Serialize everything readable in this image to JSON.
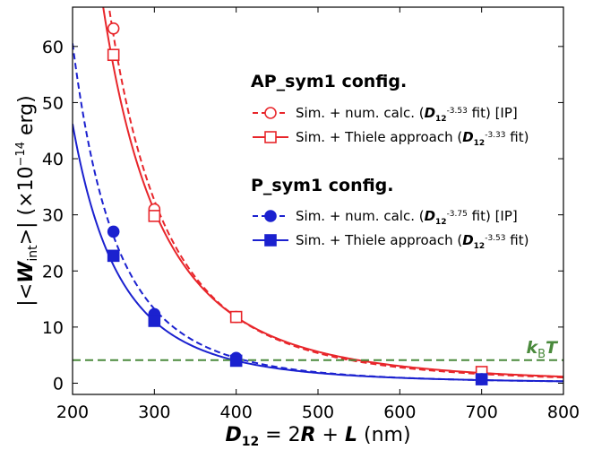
{
  "chart_data": {
    "type": "scatter",
    "xlim": [
      200,
      800
    ],
    "ylim": [
      -2,
      67
    ],
    "xticks": [
      200,
      300,
      400,
      500,
      600,
      700,
      800
    ],
    "yticks": [
      0,
      10,
      20,
      30,
      40,
      50,
      60
    ],
    "xlabel": "D₁₂ = 2R + L (nm)",
    "ylabel": "|<W_int>| (×10⁻¹⁴ erg)",
    "grid": false,
    "legend": {
      "position": "top-right",
      "groups": [
        {
          "title": "AP_sym1 config.",
          "entries": [
            {
              "label": "Sim. + num. calc. (D₁₂⁻³·⁵³ fit) [IP]",
              "marker": "circle-open",
              "line": "dashed",
              "color": "#e8262b"
            },
            {
              "label": "Sim. + Thiele approach (D₁₂⁻³·³³ fit)",
              "marker": "square-open",
              "line": "solid",
              "color": "#e8262b"
            }
          ]
        },
        {
          "title": "P_sym1 config.",
          "entries": [
            {
              "label": "Sim. + num. calc. (D₁₂⁻³·⁷⁵ fit) [IP]",
              "marker": "circle-filled",
              "line": "dashed",
              "color": "#1b21cf"
            },
            {
              "label": "Sim. + Thiele approach (D₁₂⁻³·⁵³ fit)",
              "marker": "square-filled",
              "line": "solid",
              "color": "#1b21cf"
            }
          ]
        }
      ]
    },
    "series": [
      {
        "id": "ap_num",
        "color": "#e8262b",
        "marker": "circle-open",
        "line": "dashed",
        "x": [
          250,
          300,
          400,
          700
        ],
        "y": [
          63.2,
          31.0,
          11.8,
          1.8
        ],
        "fit_exponent": -3.53
      },
      {
        "id": "ap_thiele",
        "color": "#e8262b",
        "marker": "square-open",
        "line": "solid",
        "x": [
          250,
          300,
          400,
          700
        ],
        "y": [
          58.5,
          29.8,
          11.8,
          2.0
        ],
        "fit_exponent": -3.33
      },
      {
        "id": "p_num",
        "color": "#1b21cf",
        "marker": "circle-filled",
        "line": "dashed",
        "x": [
          250,
          300,
          400,
          700
        ],
        "y": [
          27.0,
          12.3,
          4.5,
          0.7
        ],
        "fit_exponent": -3.75
      },
      {
        "id": "p_thiele",
        "color": "#1b21cf",
        "marker": "square-filled",
        "line": "solid",
        "x": [
          250,
          300,
          400,
          700
        ],
        "y": [
          22.7,
          11.1,
          4.0,
          0.7
        ],
        "fit_exponent": -3.53
      }
    ],
    "reference_line": {
      "label": "kBT",
      "y": 4.1,
      "color": "#4a8a3c",
      "style": "dashed"
    }
  }
}
